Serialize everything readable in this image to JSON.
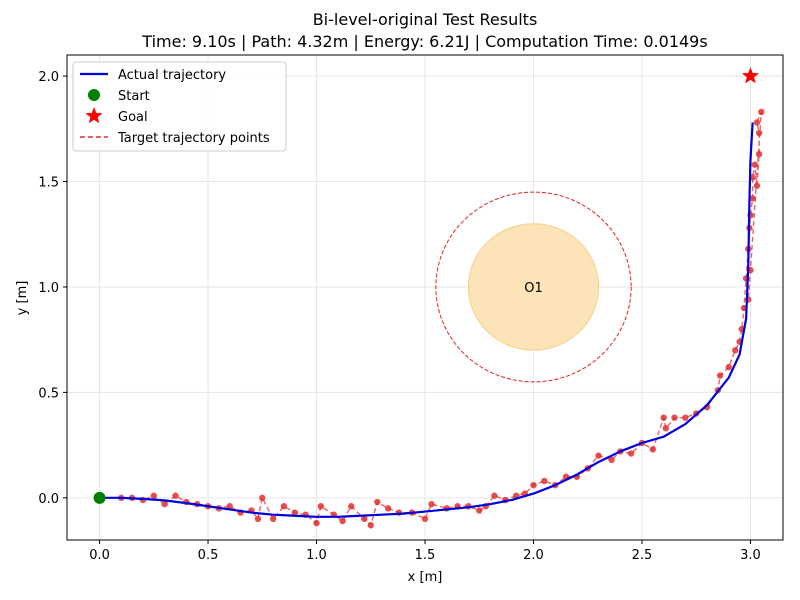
{
  "chart_data": {
    "type": "line",
    "title": "Bi-level-original Test Results",
    "subtitle": "Time: 9.10s | Path: 4.32m | Energy: 6.21J | Computation Time: 0.0149s",
    "xlabel": "x [m]",
    "ylabel": "y [m]",
    "xlim": [
      -0.15,
      3.15
    ],
    "ylim": [
      -0.2,
      2.1
    ],
    "xticks": [
      0.0,
      0.5,
      1.0,
      1.5,
      2.0,
      2.5,
      3.0
    ],
    "xtick_labels": [
      "0.0",
      "0.5",
      "1.0",
      "1.5",
      "2.0",
      "2.5",
      "3.0"
    ],
    "yticks": [
      0.0,
      0.5,
      1.0,
      1.5,
      2.0
    ],
    "ytick_labels": [
      "0.0",
      "0.5",
      "1.0",
      "1.5",
      "2.0"
    ],
    "grid": true,
    "legend_position": "top-left",
    "legend": [
      {
        "label": "Actual trajectory",
        "kind": "line",
        "color": "#0000dd"
      },
      {
        "label": "Start",
        "kind": "circle",
        "color": "#008000"
      },
      {
        "label": "Goal",
        "kind": "star",
        "color": "#ff0000"
      },
      {
        "label": "Target trajectory points",
        "kind": "dashed",
        "color": "#e03030"
      }
    ],
    "actual_trajectory": {
      "color": "#0000dd",
      "points": [
        [
          0.0,
          0.0
        ],
        [
          0.1,
          0.0
        ],
        [
          0.2,
          -0.005
        ],
        [
          0.3,
          -0.012
        ],
        [
          0.4,
          -0.025
        ],
        [
          0.5,
          -0.04
        ],
        [
          0.6,
          -0.055
        ],
        [
          0.7,
          -0.07
        ],
        [
          0.8,
          -0.08
        ],
        [
          0.9,
          -0.085
        ],
        [
          1.0,
          -0.09
        ],
        [
          1.1,
          -0.09
        ],
        [
          1.2,
          -0.085
        ],
        [
          1.3,
          -0.08
        ],
        [
          1.4,
          -0.075
        ],
        [
          1.5,
          -0.065
        ],
        [
          1.6,
          -0.055
        ],
        [
          1.7,
          -0.045
        ],
        [
          1.8,
          -0.03
        ],
        [
          1.9,
          -0.01
        ],
        [
          2.0,
          0.02
        ],
        [
          2.1,
          0.06
        ],
        [
          2.2,
          0.11
        ],
        [
          2.3,
          0.17
        ],
        [
          2.4,
          0.22
        ],
        [
          2.5,
          0.26
        ],
        [
          2.6,
          0.29
        ],
        [
          2.7,
          0.35
        ],
        [
          2.8,
          0.44
        ],
        [
          2.9,
          0.57
        ],
        [
          2.95,
          0.68
        ],
        [
          2.98,
          0.85
        ],
        [
          2.99,
          1.1
        ],
        [
          2.995,
          1.4
        ],
        [
          3.0,
          1.6
        ],
        [
          3.01,
          1.78
        ]
      ]
    },
    "target_points": {
      "color": "#e03030",
      "points": [
        [
          0.1,
          0.0
        ],
        [
          0.15,
          0.0
        ],
        [
          0.2,
          -0.01
        ],
        [
          0.25,
          0.01
        ],
        [
          0.3,
          -0.03
        ],
        [
          0.35,
          0.01
        ],
        [
          0.4,
          -0.02
        ],
        [
          0.45,
          -0.03
        ],
        [
          0.5,
          -0.04
        ],
        [
          0.55,
          -0.05
        ],
        [
          0.6,
          -0.04
        ],
        [
          0.65,
          -0.07
        ],
        [
          0.7,
          -0.06
        ],
        [
          0.73,
          -0.1
        ],
        [
          0.75,
          0.0
        ],
        [
          0.8,
          -0.1
        ],
        [
          0.85,
          -0.04
        ],
        [
          0.9,
          -0.07
        ],
        [
          0.95,
          -0.08
        ],
        [
          1.0,
          -0.12
        ],
        [
          1.02,
          -0.04
        ],
        [
          1.08,
          -0.08
        ],
        [
          1.12,
          -0.11
        ],
        [
          1.16,
          -0.04
        ],
        [
          1.22,
          -0.1
        ],
        [
          1.25,
          -0.13
        ],
        [
          1.28,
          -0.02
        ],
        [
          1.33,
          -0.05
        ],
        [
          1.38,
          -0.07
        ],
        [
          1.44,
          -0.07
        ],
        [
          1.5,
          -0.1
        ],
        [
          1.53,
          -0.03
        ],
        [
          1.6,
          -0.05
        ],
        [
          1.65,
          -0.04
        ],
        [
          1.7,
          -0.04
        ],
        [
          1.75,
          -0.06
        ],
        [
          1.78,
          -0.04
        ],
        [
          1.82,
          0.01
        ],
        [
          1.87,
          -0.01
        ],
        [
          1.92,
          0.01
        ],
        [
          1.96,
          0.02
        ],
        [
          2.0,
          0.06
        ],
        [
          2.05,
          0.08
        ],
        [
          2.1,
          0.06
        ],
        [
          2.15,
          0.1
        ],
        [
          2.2,
          0.1
        ],
        [
          2.25,
          0.14
        ],
        [
          2.3,
          0.2
        ],
        [
          2.36,
          0.18
        ],
        [
          2.4,
          0.22
        ],
        [
          2.45,
          0.21
        ],
        [
          2.5,
          0.26
        ],
        [
          2.55,
          0.23
        ],
        [
          2.6,
          0.38
        ],
        [
          2.61,
          0.33
        ],
        [
          2.65,
          0.38
        ],
        [
          2.7,
          0.38
        ],
        [
          2.75,
          0.4
        ],
        [
          2.8,
          0.43
        ],
        [
          2.85,
          0.51
        ],
        [
          2.86,
          0.58
        ],
        [
          2.9,
          0.62
        ],
        [
          2.93,
          0.7
        ],
        [
          2.95,
          0.74
        ],
        [
          2.96,
          0.8
        ],
        [
          2.97,
          0.9
        ],
        [
          2.98,
          1.04
        ],
        [
          2.99,
          1.18
        ],
        [
          2.995,
          1.28
        ],
        [
          3.0,
          1.34
        ],
        [
          3.01,
          1.42
        ],
        [
          3.01,
          1.52
        ],
        [
          3.02,
          1.58
        ],
        [
          3.03,
          1.48
        ],
        [
          3.04,
          1.63
        ],
        [
          3.04,
          1.73
        ],
        [
          3.03,
          1.78
        ],
        [
          3.05,
          1.83
        ],
        [
          3.0,
          1.08
        ],
        [
          2.99,
          0.94
        ]
      ]
    },
    "start": {
      "label": "Start",
      "x": 0.0,
      "y": 0.0,
      "color": "#008000"
    },
    "goal": {
      "label": "Goal",
      "x": 3.0,
      "y": 2.0,
      "color": "#ff0000"
    },
    "obstacle": {
      "label": "O1",
      "x": 2.0,
      "y": 1.0,
      "radius": 0.3,
      "safety_radius": 0.45,
      "fill_color": "#fde4b8",
      "edge_color": "#f5d08a",
      "safety_color": "#dd2222"
    }
  }
}
